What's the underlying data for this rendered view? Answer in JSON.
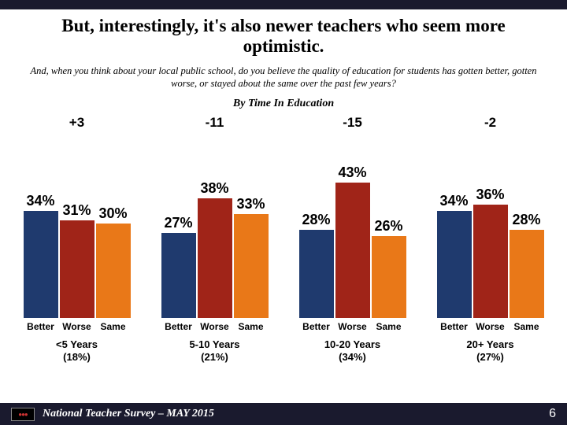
{
  "title": "But, interestingly, it's also newer teachers who seem more optimistic.",
  "subtitle": "And, when you think about your local public school, do you believe the quality of education for students has gotten better, gotten worse, or stayed about the same over the past few years?",
  "byLabel": "By Time In Education",
  "colors": {
    "better": "#1f3a6e",
    "worse": "#a02418",
    "same": "#e97818",
    "topbar": "#1a1a2e",
    "footer": "#1a1a2e"
  },
  "axisLabels": [
    "Better",
    "Worse",
    "Same"
  ],
  "maxValue": 50,
  "groups": [
    {
      "net": "+3",
      "values": [
        34,
        31,
        30
      ],
      "labels": [
        "34%",
        "31%",
        "30%"
      ],
      "name": "<5 Years",
      "pct": "(18%)"
    },
    {
      "net": "-11",
      "values": [
        27,
        38,
        33
      ],
      "labels": [
        "27%",
        "38%",
        "33%"
      ],
      "name": "5-10 Years",
      "pct": "(21%)"
    },
    {
      "net": "-15",
      "values": [
        28,
        43,
        26
      ],
      "labels": [
        "28%",
        "43%",
        "26%"
      ],
      "name": "10-20 Years",
      "pct": "(34%)"
    },
    {
      "net": "-2",
      "values": [
        34,
        36,
        28
      ],
      "labels": [
        "34%",
        "36%",
        "28%"
      ],
      "name": "20+ Years",
      "pct": "(27%)"
    }
  ],
  "footer": {
    "text": "National Teacher Survey – MAY 2015",
    "page": "6",
    "logoDots": "●●●"
  }
}
